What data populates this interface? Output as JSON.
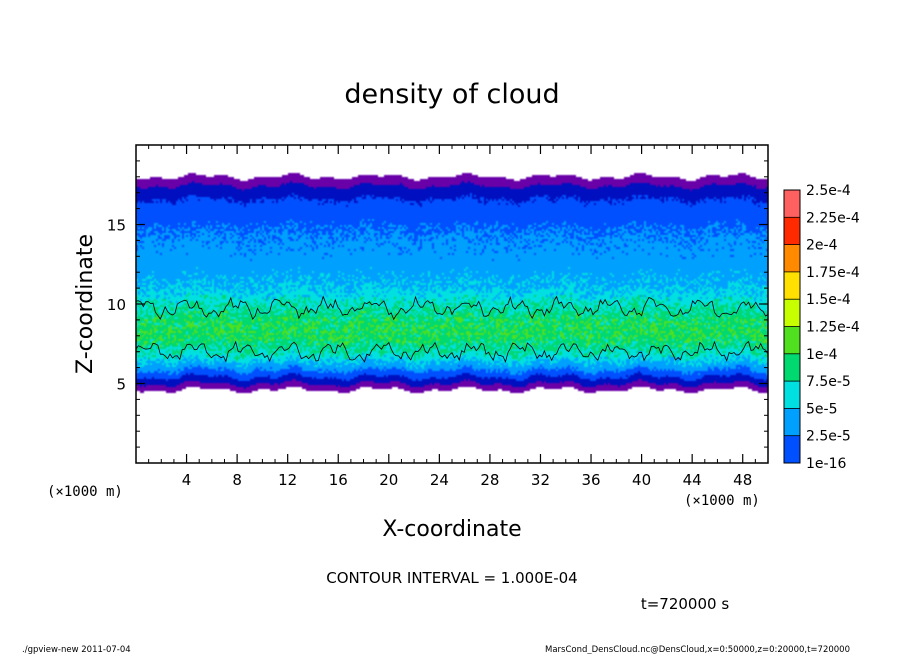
{
  "chart_data": {
    "type": "heatmap",
    "title": "density of cloud",
    "xlabel": "X-coordinate",
    "ylabel": "Z-coordinate",
    "x_unit": "(×1000 m)",
    "x_unit_right": "(×1000 m)",
    "xlim": [
      0,
      50
    ],
    "ylim": [
      0,
      20
    ],
    "x_ticks": [
      4,
      8,
      12,
      16,
      20,
      24,
      28,
      32,
      36,
      40,
      44,
      48
    ],
    "x_ticks_labels": [
      "4",
      "8",
      "12",
      "16",
      "20",
      "24",
      "28",
      "32",
      "36",
      "40",
      "44",
      "48"
    ],
    "y_ticks": [
      5,
      10,
      15
    ],
    "y_ticks_labels": [
      "5",
      "10",
      "15"
    ],
    "colorbar": {
      "labels": [
        "2.5e-4",
        "2.25e-4",
        "2e-4",
        "1.75e-4",
        "1.5e-4",
        "1.25e-4",
        "1e-4",
        "7.5e-5",
        "5e-5",
        "2.5e-5",
        "1e-16"
      ],
      "colors": [
        "#ff9999",
        "#ff6060",
        "#ff2a00",
        "#ff8a00",
        "#ffe000",
        "#c8ff00",
        "#50e020",
        "#00d870",
        "#00e0e0",
        "#00a0ff",
        "#0050ff",
        "#0010c0",
        "#6a00a8"
      ]
    },
    "profile": {
      "z": [
        4.6,
        5.0,
        5.4,
        6.0,
        7.0,
        8.0,
        9.0,
        10.0,
        11.0,
        12.0,
        13.0,
        14.0,
        15.0,
        16.0,
        16.6,
        17.4,
        18.0
      ],
      "density": [
        0,
        1e-16,
        2.5e-05,
        6e-05,
        0.0001,
        0.00012,
        0.000115,
        9.5e-05,
        7.5e-05,
        6.5e-05,
        6e-05,
        5.5e-05,
        4.5e-05,
        3.5e-05,
        2.5e-05,
        1e-16,
        0
      ]
    },
    "contour_level": 0.0001,
    "annotations": {
      "contour_interval": "CONTOUR INTERVAL = 1.000E-04",
      "time": "t=720000 s"
    }
  },
  "footer": {
    "left": "./gpview-new  2011-07-04",
    "right": "MarsCond_DensCloud.nc@DensCloud,x=0:50000,z=0:20000,t=720000"
  }
}
